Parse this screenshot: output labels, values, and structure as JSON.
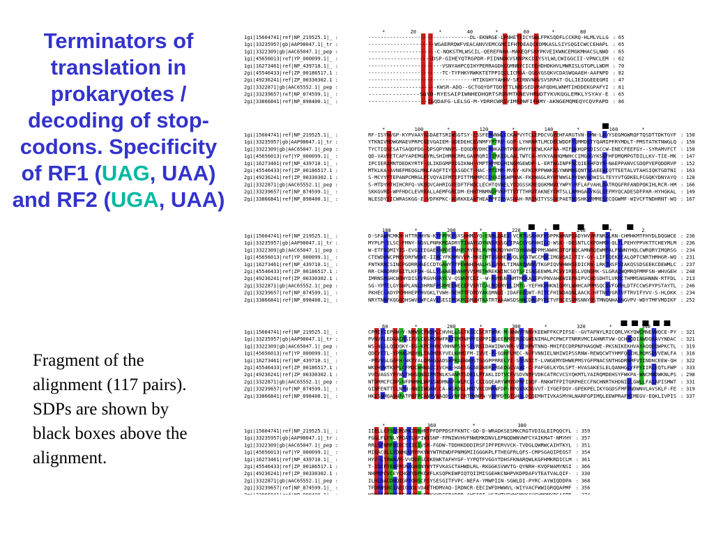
{
  "slide": {
    "title_parts": [
      {
        "text": "Terminators of translation in prokaryotes / decoding of stop-codons. Specificity of RF1 (",
        "hl": false
      },
      {
        "text": "UAG",
        "hl": true
      },
      {
        "text": ", UAA) and RF2 (",
        "hl": false
      },
      {
        "text": "UGA",
        "hl": true
      },
      {
        "text": ", UAA)",
        "hl": false
      }
    ],
    "caption": "Fragment of the alignment (117 pairs). SDPs are shown by black boxes above the alignment."
  },
  "colors": {
    "title": "#3333cc",
    "title_highlight": "#00b8a0",
    "col_red": "#cc1a1a",
    "col_blue": "#2a2ad6",
    "col_green": "#22b022",
    "sdp_box": "#000000"
  },
  "alignment": {
    "sequence_ids": [
      "1gi|15604741|ref|NP_219525.1|_",
      "1gi|33235957|gb|AAP98047.1|_tr",
      "1gi|3322309|gb|AAC65047.1|_pep",
      "1gi|45656013|ref|YP_000099.1|_",
      "1gi|16273461|ref|NP_439710.1|_",
      "2gi|45546433|ref|ZP_00186517.1",
      "2gi|49236241|ref|ZP_00330302.1",
      "2gi|3322871|gb|AAC65552.1|_pep",
      "2gi|33239657|ref|NP_874599.1|_",
      "2gi|33866841|ref|NP_898400.1|_"
    ],
    "blocks": [
      {
        "ruler": [
          "*",
          "20",
          "*",
          "40",
          "*",
          "60",
          "*",
          "80"
        ],
        "end_positions": [
          "65",
          "65",
          "65",
          "62",
          "70",
          "82",
          "47",
          "81",
          "65",
          "86"
        ],
        "sdp_markers": 0
      },
      {
        "ruler": [
          "*",
          "100",
          "*",
          "120",
          "*",
          "140",
          "*",
          "160",
          "*"
        ],
        "end_positions": [
          "150",
          "150",
          "150",
          "147",
          "152",
          "163",
          "128",
          "166",
          "149",
          "167"
        ],
        "sdp_markers": 1
      },
      {
        "ruler": [
          "180",
          "*",
          "200",
          "*",
          "220",
          "*",
          "240",
          "*",
          "2"
        ],
        "end_positions": [
          "236",
          "236",
          "234",
          "231",
          "237",
          "248",
          "213",
          "246",
          "234",
          "252"
        ],
        "sdp_markers": 5
      },
      {
        "ruler": [
          "60",
          "*",
          "280",
          "*",
          "300",
          "*",
          "320",
          "*",
          "340"
        ],
        "end_positions": [
          "321",
          "321",
          "319",
          "316",
          "322",
          "333",
          "298",
          "331",
          "319",
          "337"
        ],
        "sdp_markers": 5
      },
      {
        "ruler": [
          "*",
          "360",
          "*",
          "380"
        ],
        "end_positions": [
          "359",
          "357",
          "351",
          "354",
          "361",
          "366",
          "330",
          "368",
          "356",
          "374"
        ],
        "sdp_markers": 0
      }
    ]
  }
}
